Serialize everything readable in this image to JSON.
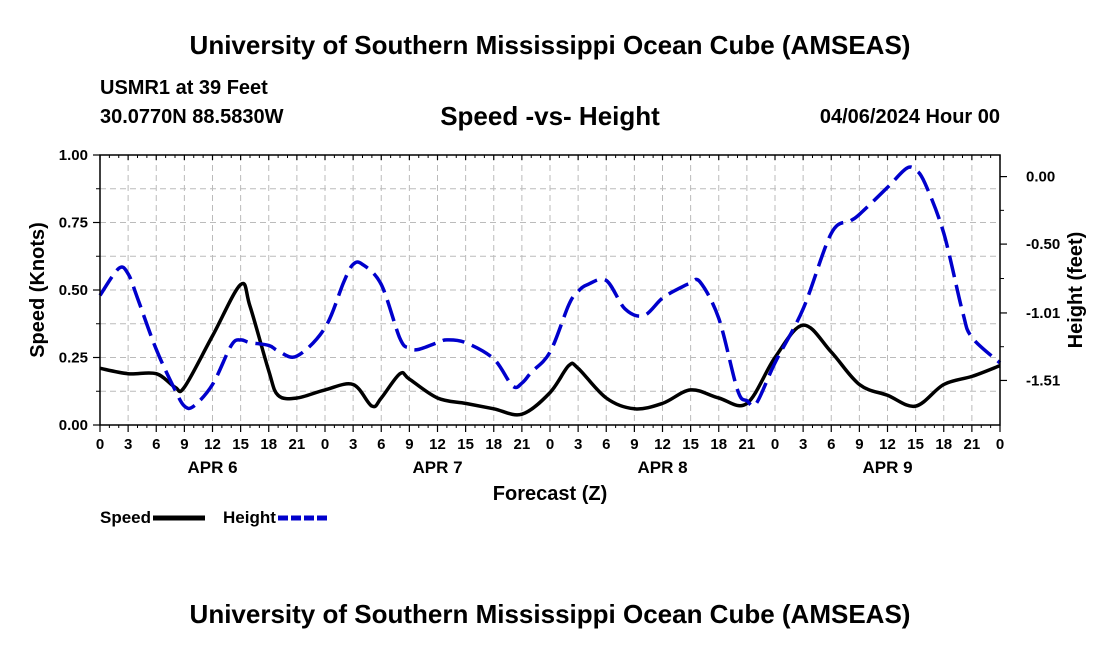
{
  "header": {
    "title": "University of Southern Mississippi Ocean Cube (AMSEAS)",
    "station": "USMR1 at 39 Feet",
    "coordinates": "30.0770N  88.5830W",
    "date": "04/06/2024 Hour 00"
  },
  "footer": {
    "title": "University of Southern Mississippi Ocean Cube (AMSEAS)"
  },
  "chart_data": {
    "type": "line",
    "title": "Speed -vs- Height",
    "xlabel": "Forecast (Z)",
    "ylabel_left": "Speed (Knots)",
    "ylabel_right": "Height (feet)",
    "x_range": [
      0,
      96
    ],
    "ylim_left": [
      0,
      1
    ],
    "ylim_right": [
      -1.84,
      0.16
    ],
    "grid": true,
    "legend_position": "bottom-left",
    "x_tick_labels": [
      "0",
      "3",
      "6",
      "9",
      "12",
      "15",
      "18",
      "21",
      "0",
      "3",
      "6",
      "9",
      "12",
      "15",
      "18",
      "21",
      "0",
      "3",
      "6",
      "9",
      "12",
      "15",
      "18",
      "21",
      "0",
      "3",
      "6",
      "9",
      "12",
      "15",
      "18",
      "21",
      "0"
    ],
    "date_labels": [
      {
        "label": "APR 6",
        "x": 12
      },
      {
        "label": "APR 7",
        "x": 36
      },
      {
        "label": "APR 8",
        "x": 60
      },
      {
        "label": "APR 9",
        "x": 84
      }
    ],
    "y_left_ticks": [
      "0.00",
      "0.25",
      "0.50",
      "0.75",
      "1.00"
    ],
    "y_right_ticks": [
      {
        "label": "0.00",
        "value": 0.0
      },
      {
        "label": "-0.50",
        "value": -0.5
      },
      {
        "label": "-1.01",
        "value": -1.01
      },
      {
        "label": "-1.51",
        "value": -1.51
      }
    ],
    "series": [
      {
        "name": "Speed",
        "axis": "left",
        "color": "#000000",
        "style": "solid",
        "x": [
          0,
          3,
          6,
          8,
          9,
          12,
          15,
          16,
          18,
          19,
          21,
          24,
          27,
          29,
          30,
          32,
          33,
          36,
          39,
          42,
          45,
          48,
          50,
          51,
          54,
          57,
          60,
          63,
          66,
          69,
          72,
          75,
          78,
          81,
          84,
          87,
          90,
          93,
          96
        ],
        "y": [
          0.21,
          0.19,
          0.19,
          0.14,
          0.14,
          0.33,
          0.52,
          0.44,
          0.2,
          0.11,
          0.1,
          0.13,
          0.15,
          0.07,
          0.1,
          0.19,
          0.17,
          0.1,
          0.08,
          0.06,
          0.04,
          0.12,
          0.22,
          0.21,
          0.1,
          0.06,
          0.08,
          0.13,
          0.1,
          0.08,
          0.25,
          0.37,
          0.27,
          0.15,
          0.11,
          0.07,
          0.15,
          0.18,
          0.22
        ]
      },
      {
        "name": "Height",
        "axis": "right",
        "color": "#0000cc",
        "style": "dashed",
        "x": [
          0,
          2,
          3,
          4,
          6,
          8,
          9,
          10,
          12,
          14,
          15,
          16,
          18,
          19,
          21,
          24,
          26,
          27,
          28,
          30,
          32,
          33,
          34,
          36,
          37,
          39,
          42,
          44,
          45,
          46,
          48,
          50,
          51,
          52,
          54,
          56,
          58,
          60,
          62,
          63,
          64,
          66,
          68,
          69,
          70,
          72,
          75,
          78,
          80,
          81,
          84,
          86,
          87,
          88,
          90,
          92,
          93,
          96
        ],
        "y": [
          -0.88,
          -0.68,
          -0.72,
          -0.9,
          -1.28,
          -1.58,
          -1.7,
          -1.7,
          -1.54,
          -1.25,
          -1.21,
          -1.23,
          -1.25,
          -1.29,
          -1.33,
          -1.12,
          -0.78,
          -0.65,
          -0.65,
          -0.8,
          -1.2,
          -1.27,
          -1.28,
          -1.23,
          -1.21,
          -1.23,
          -1.35,
          -1.55,
          -1.53,
          -1.45,
          -1.3,
          -0.95,
          -0.85,
          -0.8,
          -0.77,
          -0.98,
          -1.03,
          -0.9,
          -0.82,
          -0.79,
          -0.78,
          -1.05,
          -1.58,
          -1.66,
          -1.68,
          -1.38,
          -0.98,
          -0.42,
          -0.33,
          -0.28,
          -0.08,
          0.06,
          0.05,
          -0.05,
          -0.42,
          -1.0,
          -1.19,
          -1.38
        ]
      }
    ]
  }
}
